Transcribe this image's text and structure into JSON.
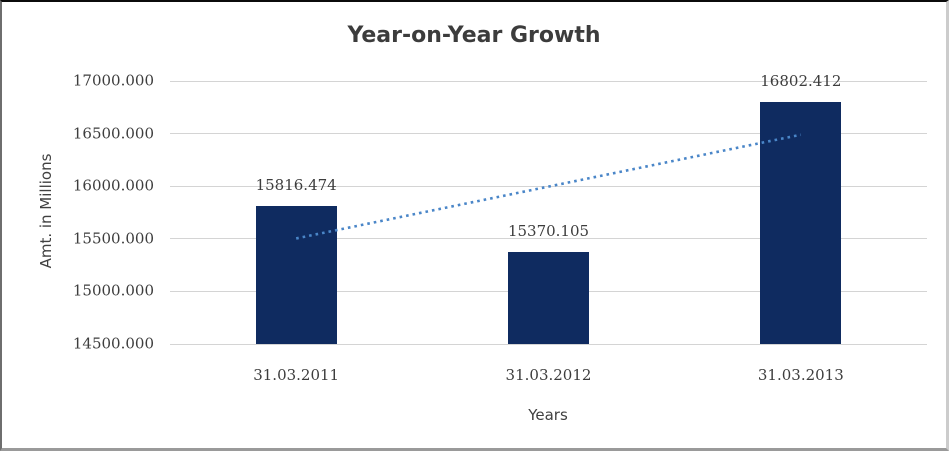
{
  "chart_data": {
    "type": "bar",
    "title": "Year-on-Year Growth",
    "xlabel": "Years",
    "ylabel": "Amt. in Millions",
    "categories": [
      "31.03.2011",
      "31.03.2012",
      "31.03.2013"
    ],
    "series": [
      {
        "name": "Amt. in Millions",
        "values": [
          15816.474,
          15370.105,
          16802.412
        ],
        "data_labels": [
          "15816.474",
          "15370.105",
          "16802.412"
        ]
      }
    ],
    "ylim": [
      14500,
      17000
    ],
    "ytick_step": 500,
    "ytick_labels": [
      "17000.000",
      "16500.000",
      "16000.000",
      "15500.000",
      "15000.000",
      "14500.000"
    ],
    "grid": true,
    "legend": false,
    "trendline": {
      "type": "linear",
      "style": "dotted"
    },
    "colors": {
      "bar": "#0f2b60",
      "trendline": "#4a86c8",
      "gridline": "#d4d4d4",
      "title_text": "#3c3c3c",
      "axis_text": "#3d3d3d"
    }
  }
}
